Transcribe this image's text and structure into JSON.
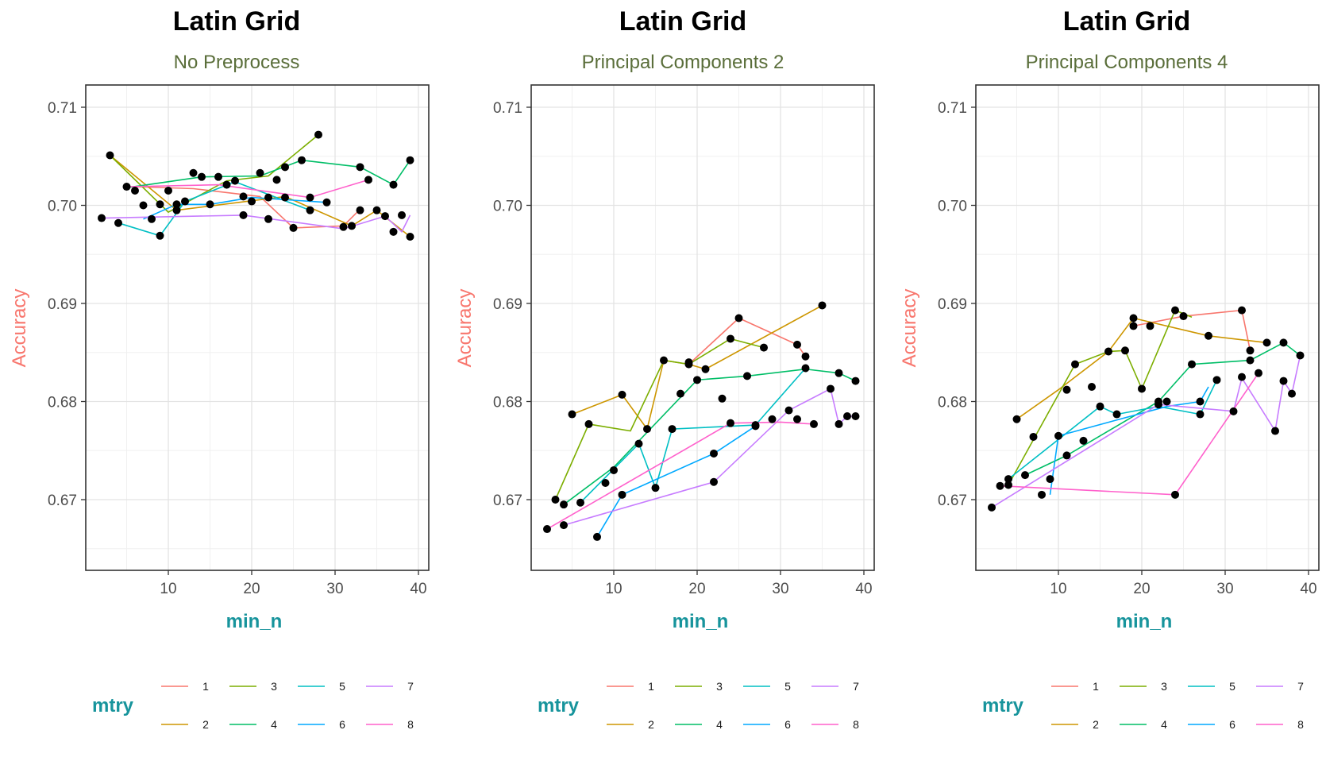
{
  "chart_data": [
    {
      "type": "line",
      "title": "Latin Grid",
      "subtitle": "No Preprocess",
      "xlabel": "min_n",
      "ylabel": "Accuracy",
      "xlim": [
        1,
        40.5
      ],
      "ylim": [
        0.6635,
        0.7115
      ],
      "x_ticks": [
        10,
        20,
        30,
        40
      ],
      "y_ticks": [
        0.67,
        0.68,
        0.69,
        0.7,
        0.71
      ],
      "y_tick_labels": [
        "0.67",
        "0.68",
        "0.69",
        "0.70",
        "0.71"
      ],
      "legend_title": "mtry",
      "series": [
        {
          "name": "1",
          "x": [
            6,
            13,
            21,
            25,
            31,
            33
          ],
          "y": [
            0.7019,
            0.7017,
            0.7009,
            0.6977,
            0.6979,
            0.6996
          ]
        },
        {
          "name": "2",
          "x": [
            3,
            11,
            24,
            32,
            35,
            39
          ],
          "y": [
            0.7051,
            0.6995,
            0.7009,
            0.6979,
            0.6995,
            0.6968
          ]
        },
        {
          "name": "3",
          "x": [
            3,
            10,
            17,
            22,
            28
          ],
          "y": [
            0.7051,
            0.6993,
            0.7025,
            0.703,
            0.7072
          ]
        },
        {
          "name": "4",
          "x": [
            5,
            14,
            21,
            26,
            33,
            37,
            39
          ],
          "y": [
            0.7018,
            0.7029,
            0.703,
            0.7046,
            0.7039,
            0.7021,
            0.7046
          ]
        },
        {
          "name": "5",
          "x": [
            4,
            9,
            12,
            18,
            27
          ],
          "y": [
            0.6982,
            0.6969,
            0.7004,
            0.7024,
            0.6995
          ]
        },
        {
          "name": "6",
          "x": [
            7,
            11,
            15,
            20,
            29
          ],
          "y": [
            0.6986,
            0.7001,
            0.7001,
            0.7008,
            0.7003
          ]
        },
        {
          "name": "7",
          "x": [
            2,
            19,
            31,
            36,
            38,
            39
          ],
          "y": [
            0.6987,
            0.699,
            0.6976,
            0.6989,
            0.6973,
            0.699
          ]
        },
        {
          "name": "8",
          "x": [
            5,
            16,
            27,
            34
          ],
          "y": [
            0.7019,
            0.7021,
            0.7008,
            0.7026
          ]
        }
      ],
      "points": [
        [
          2,
          0.6987
        ],
        [
          3,
          0.7051
        ],
        [
          4,
          0.6982
        ],
        [
          5,
          0.7019
        ],
        [
          6,
          0.7015
        ],
        [
          7,
          0.7
        ],
        [
          8,
          0.6986
        ],
        [
          9,
          0.7001
        ],
        [
          9,
          0.6969
        ],
        [
          10,
          0.7015
        ],
        [
          11,
          0.6995
        ],
        [
          11,
          0.7001
        ],
        [
          12,
          0.7004
        ],
        [
          13,
          0.7033
        ],
        [
          14,
          0.7029
        ],
        [
          15,
          0.7001
        ],
        [
          16,
          0.7029
        ],
        [
          17,
          0.7021
        ],
        [
          18,
          0.7025
        ],
        [
          19,
          0.7009
        ],
        [
          19,
          0.699
        ],
        [
          20,
          0.7004
        ],
        [
          21,
          0.7033
        ],
        [
          22,
          0.6986
        ],
        [
          22,
          0.7008
        ],
        [
          23,
          0.7026
        ],
        [
          24,
          0.7008
        ],
        [
          24,
          0.7039
        ],
        [
          25,
          0.6977
        ],
        [
          26,
          0.7046
        ],
        [
          27,
          0.6995
        ],
        [
          27,
          0.7008
        ],
        [
          28,
          0.7072
        ],
        [
          29,
          0.7003
        ],
        [
          31,
          0.6978
        ],
        [
          32,
          0.6979
        ],
        [
          33,
          0.6995
        ],
        [
          33,
          0.7039
        ],
        [
          34,
          0.7026
        ],
        [
          35,
          0.6995
        ],
        [
          36,
          0.6989
        ],
        [
          37,
          0.6973
        ],
        [
          37,
          0.7021
        ],
        [
          38,
          0.699
        ],
        [
          39,
          0.6968
        ],
        [
          39,
          0.7046
        ]
      ]
    },
    {
      "type": "line",
      "title": "Latin Grid",
      "subtitle": "Principal Components 2",
      "xlabel": "min_n",
      "ylabel": "Accuracy",
      "xlim": [
        1,
        40.5
      ],
      "ylim": [
        0.6635,
        0.7115
      ],
      "x_ticks": [
        10,
        20,
        30,
        40
      ],
      "y_ticks": [
        0.67,
        0.68,
        0.69,
        0.7,
        0.71
      ],
      "y_tick_labels": [
        "0.67",
        "0.68",
        "0.69",
        "0.70",
        "0.71"
      ],
      "legend_title": "mtry",
      "series": [
        {
          "name": "1",
          "x": [
            19,
            25,
            32,
            33
          ],
          "y": [
            0.6838,
            0.6885,
            0.6858,
            0.6846
          ]
        },
        {
          "name": "2",
          "x": [
            5,
            11,
            14,
            16,
            19,
            21,
            35
          ],
          "y": [
            0.6787,
            0.6807,
            0.6772,
            0.6842,
            0.6838,
            0.6833,
            0.6898
          ]
        },
        {
          "name": "3",
          "x": [
            3,
            7,
            12,
            16,
            19,
            24,
            28
          ],
          "y": [
            0.67,
            0.6777,
            0.677,
            0.6842,
            0.6838,
            0.6864,
            0.6855
          ]
        },
        {
          "name": "4",
          "x": [
            4,
            10,
            20,
            26,
            33,
            37,
            39
          ],
          "y": [
            0.6695,
            0.6733,
            0.6822,
            0.6826,
            0.6833,
            0.6829,
            0.6821
          ]
        },
        {
          "name": "5",
          "x": [
            6,
            13,
            15,
            17,
            27,
            33
          ],
          "y": [
            0.6697,
            0.6757,
            0.6712,
            0.6772,
            0.6776,
            0.6834
          ]
        },
        {
          "name": "6",
          "x": [
            8,
            11,
            22,
            27
          ],
          "y": [
            0.6662,
            0.6705,
            0.6747,
            0.6775
          ]
        },
        {
          "name": "7",
          "x": [
            4,
            22,
            31,
            36,
            37,
            38,
            39
          ],
          "y": [
            0.6674,
            0.6718,
            0.6791,
            0.6813,
            0.6777,
            0.6785,
            0.6785
          ]
        },
        {
          "name": "8",
          "x": [
            2,
            24,
            30,
            34
          ],
          "y": [
            0.667,
            0.6778,
            0.6779,
            0.6777
          ]
        }
      ],
      "points": [
        [
          2,
          0.667
        ],
        [
          3,
          0.67
        ],
        [
          4,
          0.6695
        ],
        [
          4,
          0.6674
        ],
        [
          5,
          0.6787
        ],
        [
          6,
          0.6697
        ],
        [
          7,
          0.6777
        ],
        [
          8,
          0.6662
        ],
        [
          9,
          0.6717
        ],
        [
          10,
          0.673
        ],
        [
          11,
          0.6807
        ],
        [
          11,
          0.6705
        ],
        [
          13,
          0.6757
        ],
        [
          14,
          0.6772
        ],
        [
          15,
          0.6712
        ],
        [
          16,
          0.6842
        ],
        [
          17,
          0.6772
        ],
        [
          18,
          0.6808
        ],
        [
          19,
          0.6838
        ],
        [
          19,
          0.684
        ],
        [
          20,
          0.6822
        ],
        [
          21,
          0.6833
        ],
        [
          22,
          0.6747
        ],
        [
          22,
          0.6718
        ],
        [
          23,
          0.6803
        ],
        [
          24,
          0.6864
        ],
        [
          24,
          0.6778
        ],
        [
          25,
          0.6885
        ],
        [
          26,
          0.6826
        ],
        [
          27,
          0.6776
        ],
        [
          27,
          0.6775
        ],
        [
          28,
          0.6855
        ],
        [
          29,
          0.6782
        ],
        [
          31,
          0.6791
        ],
        [
          32,
          0.6858
        ],
        [
          32,
          0.6782
        ],
        [
          33,
          0.6846
        ],
        [
          33,
          0.6834
        ],
        [
          34,
          0.6777
        ],
        [
          35,
          0.6898
        ],
        [
          36,
          0.6813
        ],
        [
          37,
          0.6829
        ],
        [
          37,
          0.6777
        ],
        [
          38,
          0.6785
        ],
        [
          39,
          0.6785
        ],
        [
          39,
          0.6821
        ]
      ]
    },
    {
      "type": "line",
      "title": "Latin Grid",
      "subtitle": "Principal Components 4",
      "xlabel": "min_n",
      "ylabel": "Accuracy",
      "xlim": [
        1,
        40.5
      ],
      "ylim": [
        0.6635,
        0.7115
      ],
      "x_ticks": [
        10,
        20,
        30,
        40
      ],
      "y_ticks": [
        0.67,
        0.68,
        0.69,
        0.7,
        0.71
      ],
      "y_tick_labels": [
        "0.67",
        "0.68",
        "0.69",
        "0.70",
        "0.71"
      ],
      "legend_title": "mtry",
      "series": [
        {
          "name": "1",
          "x": [
            19,
            25,
            32,
            33
          ],
          "y": [
            0.6877,
            0.6887,
            0.6893,
            0.6852
          ]
        },
        {
          "name": "2",
          "x": [
            5,
            10,
            16,
            19,
            28,
            35
          ],
          "y": [
            0.6782,
            0.6812,
            0.6851,
            0.6885,
            0.6867,
            0.686
          ]
        },
        {
          "name": "3",
          "x": [
            4,
            12,
            16,
            18,
            20,
            24,
            26
          ],
          "y": [
            0.6715,
            0.6838,
            0.6851,
            0.6852,
            0.6813,
            0.6893,
            0.6886
          ]
        },
        {
          "name": "4",
          "x": [
            6,
            11,
            22,
            26,
            33,
            37,
            39
          ],
          "y": [
            0.6725,
            0.6745,
            0.68,
            0.6838,
            0.6842,
            0.686,
            0.6847
          ]
        },
        {
          "name": "5",
          "x": [
            4,
            15,
            17,
            22,
            27,
            29
          ],
          "y": [
            0.6721,
            0.6795,
            0.6787,
            0.6795,
            0.6787,
            0.6822
          ]
        },
        {
          "name": "6",
          "x": [
            9,
            10,
            23,
            27,
            28
          ],
          "y": [
            0.6705,
            0.6765,
            0.6795,
            0.68,
            0.6815
          ]
        },
        {
          "name": "7",
          "x": [
            2,
            22,
            31,
            32,
            36,
            37,
            38,
            39
          ],
          "y": [
            0.6692,
            0.6797,
            0.679,
            0.6824,
            0.677,
            0.6821,
            0.6808,
            0.6847
          ]
        },
        {
          "name": "8",
          "x": [
            3,
            24,
            34
          ],
          "y": [
            0.6714,
            0.6705,
            0.6829
          ]
        }
      ],
      "points": [
        [
          2,
          0.6692
        ],
        [
          3,
          0.6714
        ],
        [
          4,
          0.6715
        ],
        [
          4,
          0.6721
        ],
        [
          5,
          0.6782
        ],
        [
          6,
          0.6725
        ],
        [
          7,
          0.6764
        ],
        [
          8,
          0.6705
        ],
        [
          9,
          0.6721
        ],
        [
          10,
          0.6765
        ],
        [
          11,
          0.6812
        ],
        [
          11,
          0.6745
        ],
        [
          12,
          0.6838
        ],
        [
          13,
          0.676
        ],
        [
          14,
          0.6815
        ],
        [
          15,
          0.6795
        ],
        [
          16,
          0.6851
        ],
        [
          17,
          0.6787
        ],
        [
          18,
          0.6852
        ],
        [
          19,
          0.6885
        ],
        [
          19,
          0.6877
        ],
        [
          20,
          0.6813
        ],
        [
          21,
          0.6877
        ],
        [
          22,
          0.68
        ],
        [
          22,
          0.6797
        ],
        [
          23,
          0.68
        ],
        [
          24,
          0.6893
        ],
        [
          24,
          0.6705
        ],
        [
          25,
          0.6887
        ],
        [
          26,
          0.6838
        ],
        [
          27,
          0.68
        ],
        [
          27,
          0.6787
        ],
        [
          28,
          0.6867
        ],
        [
          29,
          0.6822
        ],
        [
          31,
          0.679
        ],
        [
          32,
          0.6893
        ],
        [
          32,
          0.6825
        ],
        [
          33,
          0.6852
        ],
        [
          33,
          0.6842
        ],
        [
          34,
          0.6829
        ],
        [
          35,
          0.686
        ],
        [
          36,
          0.677
        ],
        [
          37,
          0.686
        ],
        [
          37,
          0.6821
        ],
        [
          38,
          0.6808
        ],
        [
          39,
          0.6847
        ]
      ]
    }
  ],
  "legend": {
    "title": "mtry",
    "items": [
      {
        "label": "1",
        "color": "#F8766D"
      },
      {
        "label": "2",
        "color": "#CD9600"
      },
      {
        "label": "3",
        "color": "#7CAE00"
      },
      {
        "label": "4",
        "color": "#00BE67"
      },
      {
        "label": "5",
        "color": "#00BFC4"
      },
      {
        "label": "6",
        "color": "#00A9FF"
      },
      {
        "label": "7",
        "color": "#C77CFF"
      },
      {
        "label": "8",
        "color": "#FF61CC"
      }
    ]
  }
}
